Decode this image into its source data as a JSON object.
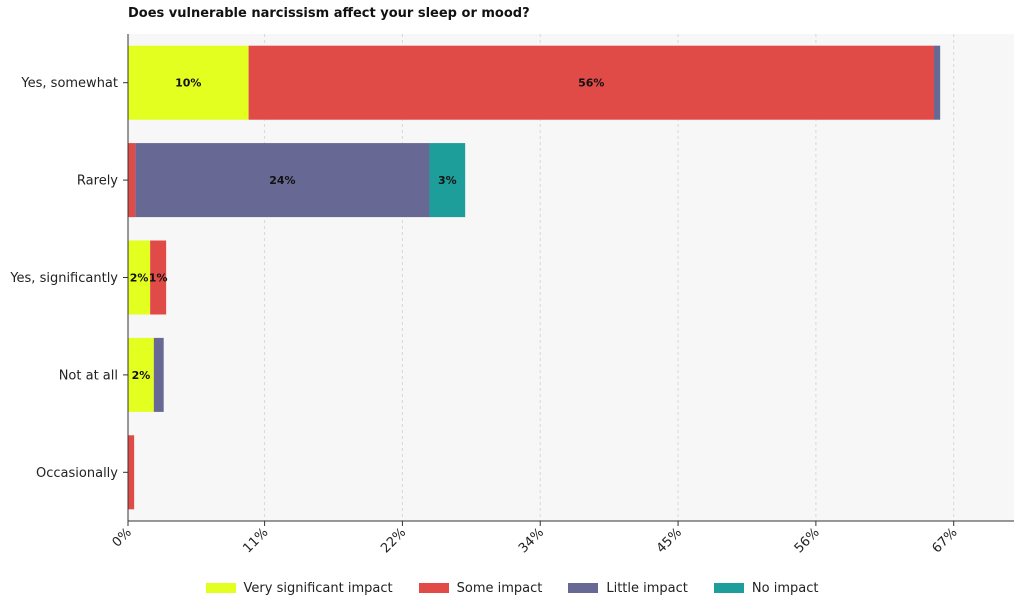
{
  "chart_data": {
    "type": "bar",
    "orientation": "horizontal",
    "stacked": true,
    "title": "Does vulnerable narcissism affect your sleep or mood?",
    "xlabel": "",
    "ylabel": "",
    "xlim": [
      0,
      72
    ],
    "x_ticks": [
      0,
      11.1,
      22.3,
      33.5,
      44.7,
      55.9,
      67.1
    ],
    "x_tick_labels": [
      "0%",
      "11%",
      "22%",
      "34%",
      "45%",
      "56%",
      "67%"
    ],
    "grid": "vertical dashed",
    "legend_position": "bottom",
    "categories": [
      "Yes, somewhat",
      "Rarely",
      "Yes, significantly",
      "Not at all",
      "Occasionally"
    ],
    "series": [
      {
        "name": "Very significant impact",
        "color": "#e2ff1f",
        "values": [
          9.8,
          0,
          1.8,
          2.1,
          0
        ],
        "labels": [
          "10%",
          "",
          "2%",
          "2%",
          ""
        ]
      },
      {
        "name": "Some impact",
        "color": "#e04b48",
        "values": [
          55.7,
          0.6,
          1.3,
          0,
          0.5
        ],
        "labels": [
          "56%",
          "",
          "1%",
          "",
          ""
        ]
      },
      {
        "name": "Little impact",
        "color": "#676894",
        "values": [
          0.5,
          23.9,
          0,
          0.8,
          0
        ],
        "labels": [
          "",
          "24%",
          "",
          "",
          ""
        ]
      },
      {
        "name": "No impact",
        "color": "#1e9e9a",
        "values": [
          0,
          2.9,
          0,
          0,
          0
        ],
        "labels": [
          "",
          "3%",
          "",
          "",
          ""
        ]
      }
    ]
  }
}
